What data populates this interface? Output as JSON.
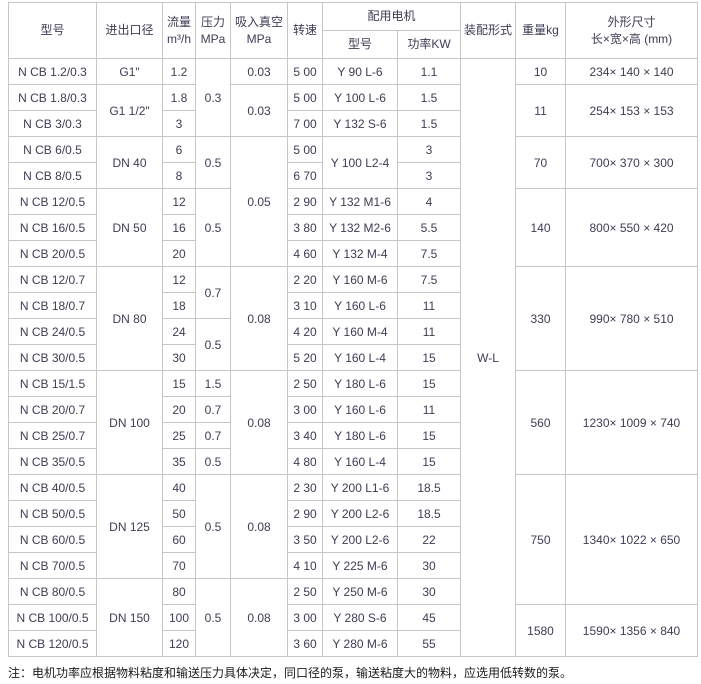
{
  "table": {
    "headers": {
      "model": "型号",
      "diameter": "进出口径",
      "flow_line1": "流量",
      "flow_line2": "m³/h",
      "pressure_line1": "压力",
      "pressure_line2": "MPa",
      "vacuum_line1": "吸入真空",
      "vacuum_line2": "MPa",
      "speed": "转速",
      "motor_group": "配用电机",
      "motor_model": "型号",
      "motor_power": "功率KW",
      "assembly": "装配形式",
      "weight": "重量kg",
      "dims_line1": "外形尺寸",
      "dims_line2": "长×宽×高 (mm)"
    },
    "rows": [
      [
        {
          "v": "N CB 1.2/0.3"
        },
        {
          "v": "G1\""
        },
        {
          "v": "1.2"
        },
        {
          "v": "0.3",
          "rs": 3
        },
        {
          "v": "0.03"
        },
        {
          "v": "5 00"
        },
        {
          "v": "Y 90 L-6"
        },
        {
          "v": "1.1"
        },
        {
          "v": "W-L",
          "rs": 23
        },
        {
          "v": "10"
        },
        {
          "v": "234× 140 × 140"
        }
      ],
      [
        {
          "v": "N CB 1.8/0.3"
        },
        {
          "v": "G1 1/2\"",
          "rs": 2
        },
        {
          "v": "1.8"
        },
        {
          "v": "0.03",
          "rs": 2
        },
        {
          "v": "5 00"
        },
        {
          "v": "Y 100 L-6"
        },
        {
          "v": "1.5"
        },
        {
          "v": "11",
          "rs": 2
        },
        {
          "v": "254× 153 × 153",
          "rs": 2
        }
      ],
      [
        {
          "v": "N CB 3/0.3"
        },
        {
          "v": "3"
        },
        {
          "v": "7 00"
        },
        {
          "v": "Y 132 S-6"
        },
        {
          "v": "1.5"
        }
      ],
      [
        {
          "v": "N CB 6/0.5"
        },
        {
          "v": "DN 40",
          "rs": 2
        },
        {
          "v": "6"
        },
        {
          "v": "0.5",
          "rs": 2
        },
        {
          "v": "0.05",
          "rs": 5
        },
        {
          "v": "5 00"
        },
        {
          "v": "Y 100 L2-4",
          "rs": 2
        },
        {
          "v": "3"
        },
        {
          "v": "70",
          "rs": 2
        },
        {
          "v": "700× 370 × 300",
          "rs": 2
        }
      ],
      [
        {
          "v": "N CB 8/0.5"
        },
        {
          "v": "8"
        },
        {
          "v": "6 70"
        },
        {
          "v": "3"
        }
      ],
      [
        {
          "v": "N CB 12/0.5"
        },
        {
          "v": "DN 50",
          "rs": 3
        },
        {
          "v": "12"
        },
        {
          "v": "0.5",
          "rs": 3
        },
        {
          "v": "2 90"
        },
        {
          "v": "Y 132 M1-6"
        },
        {
          "v": "4"
        },
        {
          "v": "140",
          "rs": 3
        },
        {
          "v": "800× 550 × 420",
          "rs": 3
        }
      ],
      [
        {
          "v": "N CB 16/0.5"
        },
        {
          "v": "16"
        },
        {
          "v": "3 80"
        },
        {
          "v": "Y 132 M2-6"
        },
        {
          "v": "5.5"
        }
      ],
      [
        {
          "v": "N CB 20/0.5"
        },
        {
          "v": "20"
        },
        {
          "v": "4 60"
        },
        {
          "v": "Y 132 M-4"
        },
        {
          "v": "7.5"
        }
      ],
      [
        {
          "v": "N CB 12/0.7"
        },
        {
          "v": "DN 80",
          "rs": 4
        },
        {
          "v": "12"
        },
        {
          "v": "0.7",
          "rs": 2
        },
        {
          "v": "0.08",
          "rs": 4
        },
        {
          "v": "2 20"
        },
        {
          "v": "Y 160 M-6"
        },
        {
          "v": "7.5"
        },
        {
          "v": "330",
          "rs": 4
        },
        {
          "v": "990× 780 × 510",
          "rs": 4
        }
      ],
      [
        {
          "v": "N CB 18/0.7"
        },
        {
          "v": "18"
        },
        {
          "v": "3 10"
        },
        {
          "v": "Y 160 L-6"
        },
        {
          "v": "11"
        }
      ],
      [
        {
          "v": "N CB 24/0.5"
        },
        {
          "v": "24"
        },
        {
          "v": "0.5",
          "rs": 2
        },
        {
          "v": "4 20"
        },
        {
          "v": "Y 160 M-4"
        },
        {
          "v": "11"
        }
      ],
      [
        {
          "v": "N CB 30/0.5"
        },
        {
          "v": "30"
        },
        {
          "v": "5 20"
        },
        {
          "v": "Y 160 L-4"
        },
        {
          "v": "15"
        }
      ],
      [
        {
          "v": "N CB 15/1.5"
        },
        {
          "v": "DN 100",
          "rs": 4
        },
        {
          "v": "15"
        },
        {
          "v": "1.5"
        },
        {
          "v": "0.08",
          "rs": 4
        },
        {
          "v": "2 50"
        },
        {
          "v": "Y 180 L-6"
        },
        {
          "v": "15"
        },
        {
          "v": "560",
          "rs": 4
        },
        {
          "v": "1230× 1009 × 740",
          "rs": 4
        }
      ],
      [
        {
          "v": "N CB 20/0.7"
        },
        {
          "v": "20"
        },
        {
          "v": "0.7"
        },
        {
          "v": "3 00"
        },
        {
          "v": "Y 160 L-6"
        },
        {
          "v": "11"
        }
      ],
      [
        {
          "v": "N CB 25/0.7"
        },
        {
          "v": "25"
        },
        {
          "v": "0.7"
        },
        {
          "v": "3 40"
        },
        {
          "v": "Y 180 L-6"
        },
        {
          "v": "15"
        }
      ],
      [
        {
          "v": "N CB 35/0.5"
        },
        {
          "v": "35"
        },
        {
          "v": "0.5"
        },
        {
          "v": "4 80"
        },
        {
          "v": "Y 160 L-4"
        },
        {
          "v": "15"
        }
      ],
      [
        {
          "v": "N CB 40/0.5"
        },
        {
          "v": "DN 125",
          "rs": 4
        },
        {
          "v": "40"
        },
        {
          "v": "0.5",
          "rs": 4
        },
        {
          "v": "0.08",
          "rs": 4
        },
        {
          "v": "2 30"
        },
        {
          "v": "Y 200 L1-6"
        },
        {
          "v": "18.5"
        },
        {
          "v": "750",
          "rs": 5
        },
        {
          "v": "1340× 1022 × 650",
          "rs": 5
        }
      ],
      [
        {
          "v": "N CB 50/0.5"
        },
        {
          "v": "50"
        },
        {
          "v": "2 90"
        },
        {
          "v": "Y 200 L2-6"
        },
        {
          "v": "18.5"
        }
      ],
      [
        {
          "v": "N CB 60/0.5"
        },
        {
          "v": "60"
        },
        {
          "v": "3 50"
        },
        {
          "v": "Y 200 L2-6"
        },
        {
          "v": "22"
        }
      ],
      [
        {
          "v": "N CB 70/0.5"
        },
        {
          "v": "70"
        },
        {
          "v": "4 10"
        },
        {
          "v": "Y 225 M-6"
        },
        {
          "v": "30"
        }
      ],
      [
        {
          "v": "N CB 80/0.5"
        },
        {
          "v": "DN 150",
          "rs": 3
        },
        {
          "v": "80"
        },
        {
          "v": "0.5",
          "rs": 3
        },
        {
          "v": "0.08",
          "rs": 3
        },
        {
          "v": "2 50"
        },
        {
          "v": "Y 250 M-6"
        },
        {
          "v": "30"
        }
      ],
      [
        {
          "v": "N CB 100/0.5"
        },
        {
          "v": "100"
        },
        {
          "v": "3 00"
        },
        {
          "v": "Y 280 S-6"
        },
        {
          "v": "45"
        },
        {
          "v": "1580",
          "rs": 2
        },
        {
          "v": "1590× 1356 × 840",
          "rs": 2
        }
      ],
      [
        {
          "v": "N CB 120/0.5"
        },
        {
          "v": "120"
        },
        {
          "v": "3 60"
        },
        {
          "v": "Y 280 M-6"
        },
        {
          "v": "55"
        }
      ]
    ],
    "note": "注：电机功率应根据物料粘度和输送压力具体决定，同口径的泵，输送粘度大的物料，应选用低转数的泵。"
  },
  "colors": {
    "border": "#c6c6c6",
    "text": "#3d3d54",
    "note_text": "#1a1a1a",
    "background": "#ffffff"
  }
}
